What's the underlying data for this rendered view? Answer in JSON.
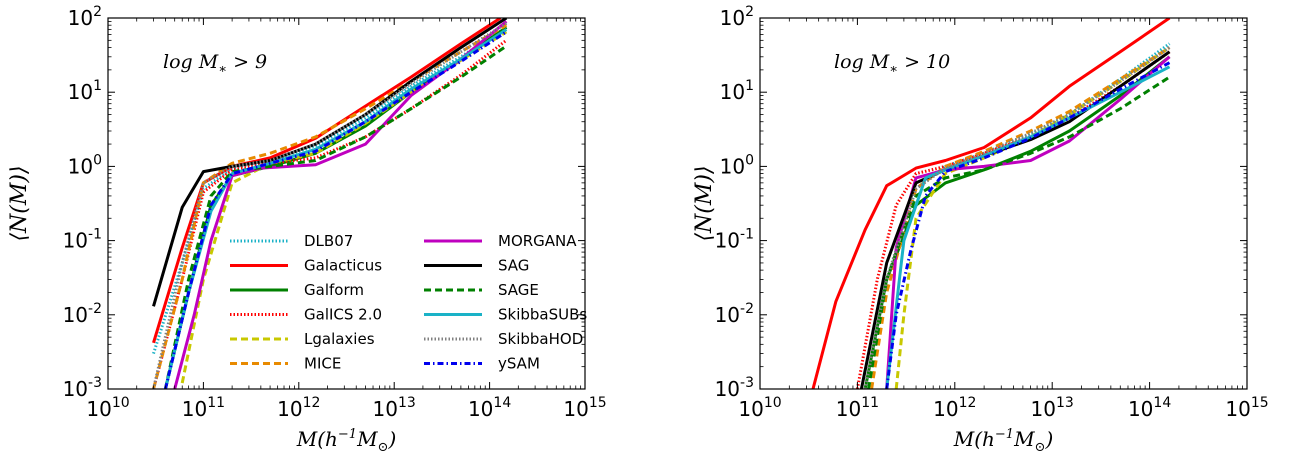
{
  "figure": {
    "panels": [
      {
        "annotation": "log M_* > 9"
      },
      {
        "annotation": "log M_* > 10"
      }
    ],
    "xlabel": "M(h^{-1}M_⊙)",
    "ylabel": "⟨N(M)⟩"
  },
  "legend": {
    "placement": "lower-right of left panel",
    "columns": 2,
    "entries": [
      {
        "label": "DLB07",
        "color": "#1ab2c7",
        "style": "dotted"
      },
      {
        "label": "Galacticus",
        "color": "#ff0000",
        "style": "solid"
      },
      {
        "label": "Galform",
        "color": "#008000",
        "style": "solid"
      },
      {
        "label": "GalICS 2.0",
        "color": "#ff0000",
        "style": "dotted"
      },
      {
        "label": "Lgalaxies",
        "color": "#c8c800",
        "style": "dashed"
      },
      {
        "label": "MICE",
        "color": "#e88a00",
        "style": "dashed"
      },
      {
        "label": "MORGANA",
        "color": "#bf00bf",
        "style": "solid"
      },
      {
        "label": "SAG",
        "color": "#000000",
        "style": "solid"
      },
      {
        "label": "SAGE",
        "color": "#008000",
        "style": "dashed"
      },
      {
        "label": "SkibbaSUBs",
        "color": "#1ab2c7",
        "style": "solid"
      },
      {
        "label": "SkibbaHOD",
        "color": "#808080",
        "style": "dotted"
      },
      {
        "label": "ySAM",
        "color": "#0000ee",
        "style": "dashdot"
      }
    ]
  },
  "chart_data": [
    {
      "type": "line",
      "title": "",
      "annotation": "log M_* > 9",
      "xlabel": "M(h^{-1}M_⊙)",
      "ylabel": "⟨N(M)⟩",
      "xscale": "log",
      "yscale": "log",
      "xlim": [
        10000000000.0,
        1000000000000000.0
      ],
      "ylim": [
        0.001,
        100
      ],
      "xticklabels": [
        "10^10",
        "10^11",
        "10^12",
        "10^13",
        "10^14",
        "10^15"
      ],
      "yticklabels": [
        "10^-3",
        "10^-2",
        "10^-1",
        "10^0",
        "10^1",
        "10^2"
      ],
      "grid": false,
      "legend": "lower-right",
      "series": [
        {
          "name": "DLB07",
          "x": [
            30000000000.0,
            60000000000.0,
            100000000000.0,
            200000000000.0,
            500000000000.0,
            1500000000000.0,
            5000000000000.0,
            15000000000000.0,
            50000000000000.0,
            150000000000000.0
          ],
          "y": [
            0.003,
            0.05,
            0.5,
            0.95,
            1.2,
            1.9,
            4.5,
            12,
            30,
            75
          ]
        },
        {
          "name": "Galacticus",
          "x": [
            30000000000.0,
            60000000000.0,
            100000000000.0,
            200000000000.0,
            500000000000.0,
            1500000000000.0,
            5000000000000.0,
            15000000000000.0,
            50000000000000.0,
            130000000000000.0
          ],
          "y": [
            0.0042,
            0.08,
            0.6,
            1.0,
            1.3,
            2.4,
            6.5,
            16,
            45,
            100
          ]
        },
        {
          "name": "Galform",
          "x": [
            40000000000.0,
            70000000000.0,
            120000000000.0,
            200000000000.0,
            500000000000.0,
            1500000000000.0,
            5000000000000.0,
            15000000000000.0,
            50000000000000.0,
            150000000000000.0
          ],
          "y": [
            0.001,
            0.02,
            0.3,
            0.75,
            1.0,
            1.5,
            3.5,
            10,
            28,
            75
          ]
        },
        {
          "name": "GalICS 2.0",
          "x": [
            30000000000.0,
            60000000000.0,
            100000000000.0,
            200000000000.0,
            500000000000.0,
            1500000000000.0,
            5000000000000.0,
            15000000000000.0,
            50000000000000.0,
            150000000000000.0
          ],
          "y": [
            0.001,
            0.03,
            0.45,
            0.9,
            1.1,
            1.3,
            2.5,
            6,
            17,
            50
          ]
        },
        {
          "name": "Lgalaxies",
          "x": [
            60000000000.0,
            100000000000.0,
            200000000000.0,
            500000000000.0,
            1500000000000.0,
            5000000000000.0,
            15000000000000.0,
            50000000000000.0,
            150000000000000.0
          ],
          "y": [
            0.0012,
            0.03,
            0.6,
            1.1,
            1.5,
            3.8,
            10,
            27,
            65
          ]
        },
        {
          "name": "MICE",
          "x": [
            30000000000.0,
            60000000000.0,
            100000000000.0,
            200000000000.0,
            500000000000.0,
            1500000000000.0,
            5000000000000.0,
            15000000000000.0,
            50000000000000.0,
            150000000000000.0
          ],
          "y": [
            0.001,
            0.03,
            0.6,
            1.1,
            1.5,
            2.5,
            6,
            14,
            35,
            80
          ]
        },
        {
          "name": "MORGANA",
          "x": [
            50000000000.0,
            80000000000.0,
            120000000000.0,
            200000000000.0,
            400000000000.0,
            1500000000000.0,
            5000000000000.0,
            15000000000000.0,
            50000000000000.0,
            150000000000000.0
          ],
          "y": [
            0.001,
            0.01,
            0.1,
            0.75,
            0.95,
            1.05,
            2.0,
            9,
            28,
            90
          ]
        },
        {
          "name": "SAG",
          "x": [
            30000000000.0,
            60000000000.0,
            100000000000.0,
            200000000000.0,
            500000000000.0,
            1500000000000.0,
            5000000000000.0,
            15000000000000.0,
            50000000000000.0,
            150000000000000.0
          ],
          "y": [
            0.013,
            0.28,
            0.85,
            1.0,
            1.2,
            2.0,
            5,
            14,
            40,
            100
          ]
        },
        {
          "name": "SAGE",
          "x": [
            40000000000.0,
            70000000000.0,
            120000000000.0,
            200000000000.0,
            500000000000.0,
            1500000000000.0,
            5000000000000.0,
            15000000000000.0,
            50000000000000.0,
            150000000000000.0
          ],
          "y": [
            0.001,
            0.03,
            0.4,
            0.85,
            1.0,
            1.2,
            2.5,
            6,
            16,
            42
          ]
        },
        {
          "name": "SkibbaSUBs",
          "x": [
            40000000000.0,
            70000000000.0,
            120000000000.0,
            200000000000.0,
            500000000000.0,
            1500000000000.0,
            5000000000000.0,
            15000000000000.0,
            50000000000000.0,
            150000000000000.0
          ],
          "y": [
            0.001,
            0.02,
            0.25,
            0.8,
            1.1,
            1.7,
            4,
            11,
            28,
            70
          ]
        },
        {
          "name": "SkibbaHOD",
          "x": [
            30000000000.0,
            60000000000.0,
            100000000000.0,
            200000000000.0,
            500000000000.0,
            1500000000000.0,
            5000000000000.0,
            15000000000000.0,
            50000000000000.0,
            150000000000000.0
          ],
          "y": [
            0.001,
            0.05,
            0.6,
            1.0,
            1.2,
            2.0,
            5,
            13,
            35,
            85
          ]
        },
        {
          "name": "ySAM",
          "x": [
            40000000000.0,
            70000000000.0,
            120000000000.0,
            200000000000.0,
            500000000000.0,
            1500000000000.0,
            5000000000000.0,
            15000000000000.0,
            50000000000000.0,
            150000000000000.0
          ],
          "y": [
            0.001,
            0.02,
            0.3,
            0.8,
            1.1,
            1.6,
            4,
            10,
            26,
            65
          ]
        }
      ]
    },
    {
      "type": "line",
      "title": "",
      "annotation": "log M_* > 10",
      "xlabel": "M(h^{-1}M_⊙)",
      "ylabel": "⟨N(M)⟩",
      "xscale": "log",
      "yscale": "log",
      "xlim": [
        10000000000.0,
        1000000000000000.0
      ],
      "ylim": [
        0.001,
        100
      ],
      "xticklabels": [
        "10^10",
        "10^11",
        "10^12",
        "10^13",
        "10^14",
        "10^15"
      ],
      "yticklabels": [
        "10^-3",
        "10^-2",
        "10^-1",
        "10^0",
        "10^1",
        "10^2"
      ],
      "grid": false,
      "series": [
        {
          "name": "DLB07",
          "x": [
            120000000000.0,
            200000000000.0,
            400000000000.0,
            800000000000.0,
            2000000000000.0,
            6000000000000.0,
            15000000000000.0,
            50000000000000.0,
            160000000000000.0
          ],
          "y": [
            0.001,
            0.03,
            0.5,
            1.0,
            1.5,
            2.7,
            5,
            15,
            45
          ]
        },
        {
          "name": "Galacticus",
          "x": [
            35000000000.0,
            60000000000.0,
            120000000000.0,
            200000000000.0,
            400000000000.0,
            800000000000.0,
            2000000000000.0,
            6000000000000.0,
            15000000000000.0,
            50000000000000.0,
            160000000000000.0
          ],
          "y": [
            0.001,
            0.015,
            0.14,
            0.55,
            0.95,
            1.2,
            1.8,
            4.5,
            12,
            35,
            100
          ]
        },
        {
          "name": "Galform",
          "x": [
            120000000000.0,
            200000000000.0,
            400000000000.0,
            800000000000.0,
            2000000000000.0,
            6000000000000.0,
            15000000000000.0,
            50000000000000.0,
            160000000000000.0
          ],
          "y": [
            0.001,
            0.03,
            0.3,
            0.6,
            0.9,
            1.6,
            3,
            9,
            30
          ]
        },
        {
          "name": "GalICS 2.0",
          "x": [
            100000000000.0,
            160000000000.0,
            250000000000.0,
            400000000000.0,
            800000000000.0,
            2000000000000.0,
            6000000000000.0,
            15000000000000.0,
            50000000000000.0,
            160000000000000.0
          ],
          "y": [
            0.001,
            0.03,
            0.3,
            0.8,
            1.0,
            1.5,
            2.5,
            4.5,
            12,
            35
          ]
        },
        {
          "name": "Lgalaxies",
          "x": [
            250000000000.0,
            300000000000.0,
            400000000000.0,
            800000000000.0,
            2000000000000.0,
            6000000000000.0,
            15000000000000.0,
            50000000000000.0,
            160000000000000.0
          ],
          "y": [
            0.001,
            0.01,
            0.2,
            0.8,
            1.3,
            2.5,
            5,
            14,
            40
          ]
        },
        {
          "name": "MICE",
          "x": [
            140000000000.0,
            200000000000.0,
            400000000000.0,
            800000000000.0,
            2000000000000.0,
            6000000000000.0,
            15000000000000.0,
            50000000000000.0,
            160000000000000.0
          ],
          "y": [
            0.001,
            0.02,
            0.5,
            1.0,
            1.6,
            3,
            5.5,
            15,
            40
          ]
        },
        {
          "name": "MORGANA",
          "x": [
            200000000000.0,
            250000000000.0,
            400000000000.0,
            800000000000.0,
            2000000000000.0,
            6000000000000.0,
            15000000000000.0,
            50000000000000.0,
            160000000000000.0
          ],
          "y": [
            0.001,
            0.08,
            0.7,
            0.9,
            1.0,
            1.2,
            2.2,
            8,
            30
          ]
        },
        {
          "name": "SAG",
          "x": [
            110000000000.0,
            200000000000.0,
            400000000000.0,
            800000000000.0,
            2000000000000.0,
            6000000000000.0,
            15000000000000.0,
            50000000000000.0,
            160000000000000.0
          ],
          "y": [
            0.001,
            0.05,
            0.6,
            0.9,
            1.4,
            2.3,
            4,
            12,
            35
          ]
        },
        {
          "name": "SAGE",
          "x": [
            130000000000.0,
            200000000000.0,
            400000000000.0,
            800000000000.0,
            2000000000000.0,
            6000000000000.0,
            15000000000000.0,
            50000000000000.0,
            160000000000000.0
          ],
          "y": [
            0.001,
            0.03,
            0.4,
            0.7,
            0.9,
            1.5,
            2.5,
            6,
            16
          ]
        },
        {
          "name": "SkibbaSUBs",
          "x": [
            200000000000.0,
            300000000000.0,
            500000000000.0,
            800000000000.0,
            2000000000000.0,
            6000000000000.0,
            15000000000000.0,
            50000000000000.0,
            160000000000000.0
          ],
          "y": [
            0.001,
            0.1,
            0.7,
            0.9,
            1.4,
            2.5,
            4.5,
            10,
            22
          ]
        },
        {
          "name": "SkibbaHOD",
          "x": [
            120000000000.0,
            200000000000.0,
            400000000000.0,
            800000000000.0,
            2000000000000.0,
            6000000000000.0,
            15000000000000.0,
            50000000000000.0,
            160000000000000.0
          ],
          "y": [
            0.001,
            0.03,
            0.5,
            0.95,
            1.5,
            2.8,
            5,
            14,
            40
          ]
        },
        {
          "name": "ySAM",
          "x": [
            200000000000.0,
            250000000000.0,
            350000000000.0,
            500000000000.0,
            800000000000.0,
            2000000000000.0,
            6000000000000.0,
            15000000000000.0,
            50000000000000.0,
            160000000000000.0
          ],
          "y": [
            0.001,
            0.01,
            0.07,
            0.4,
            0.85,
            1.3,
            2.4,
            4.5,
            11,
            25
          ]
        }
      ]
    }
  ]
}
